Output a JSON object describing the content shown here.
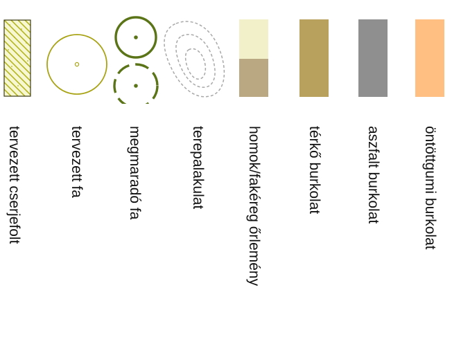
{
  "legend": {
    "items": [
      {
        "id": "cserjefolt",
        "label": "tervezett cserjefolt",
        "icon": "hatched-shrub-area-icon",
        "colors": {
          "fill": "#f7f7d2",
          "hatch": "#b3b420",
          "border": "#3a3a10"
        }
      },
      {
        "id": "tervezett-fa",
        "label": "tervezett fa",
        "icon": "planned-tree-circle-icon",
        "colors": {
          "stroke": "#a8a315"
        }
      },
      {
        "id": "megmarado-fa",
        "label": "megmaradó fa",
        "icon": "retained-tree-circle-icon",
        "colors": {
          "stroke": "#5a7417"
        }
      },
      {
        "id": "terepalakulat",
        "label": "terepalakulat",
        "icon": "terrain-contour-icon",
        "colors": {
          "stroke": "#a8a8a8"
        }
      },
      {
        "id": "homok",
        "label": "homok/fakéreg őrlemény",
        "icon": "sand-bark-swatch-icon",
        "colors": {
          "top": "#f2f0c8",
          "bottom": "#b9a882"
        }
      },
      {
        "id": "terko",
        "label": "térkő burkolat",
        "icon": "paving-stone-swatch-icon",
        "colors": {
          "fill": "#b8a15c"
        }
      },
      {
        "id": "aszfalt",
        "label": "aszfalt burkolat",
        "icon": "asphalt-swatch-icon",
        "colors": {
          "fill": "#8f8f8f"
        }
      },
      {
        "id": "ontottgumi",
        "label": "öntöttgumi burkolat",
        "icon": "rubber-swatch-icon",
        "colors": {
          "fill": "#ffbf82"
        }
      }
    ]
  }
}
